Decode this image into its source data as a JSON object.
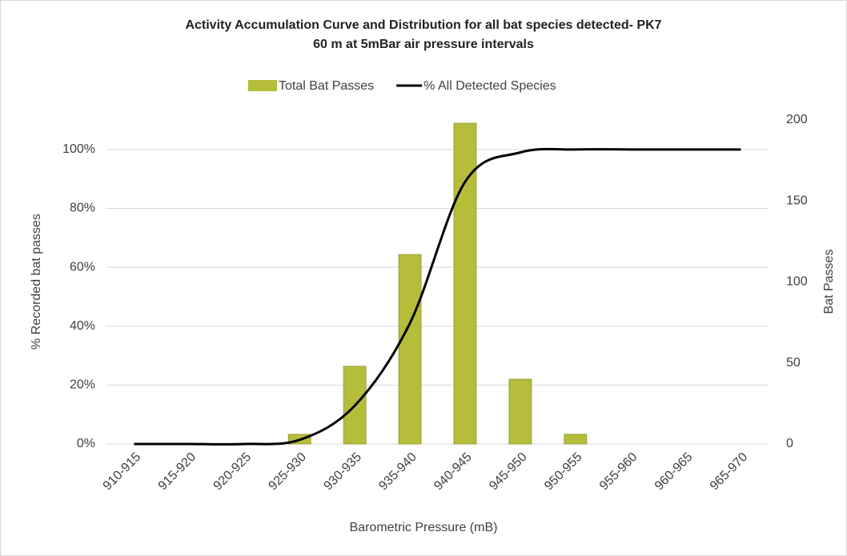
{
  "chart_data": {
    "type": "bar_line",
    "title": "Activity Accumulation Curve and Distribution for all bat species detected- PK7 60 m at 5mBar air pressure intervals",
    "x_label": "Barometric Pressure (mB)",
    "y_label": "% Recorded bat passes",
    "y2_label": "Bat Passes",
    "categories": [
      "910-915",
      "915-920",
      "920-925",
      "925-930",
      "930-935",
      "935-940",
      "940-945",
      "945-950",
      "950-955",
      "955-960",
      "960-965",
      "965-970"
    ],
    "series": [
      {
        "name": "Total Bat Passes",
        "type": "bar",
        "axis": "y2",
        "color": "#b5bd3b",
        "values": [
          0,
          0,
          0,
          6,
          48,
          117,
          198,
          40,
          6,
          0,
          0,
          0
        ]
      },
      {
        "name": "% All Detected Species",
        "type": "line",
        "color": "#000000",
        "values": [
          0,
          0,
          0,
          1.4,
          13,
          41,
          89,
          99,
          100,
          100,
          100,
          100
        ]
      }
    ],
    "ylim": [
      0,
      110
    ],
    "yticks": [
      {
        "value": 0,
        "label": "0%"
      },
      {
        "value": 20,
        "label": "20%"
      },
      {
        "value": 40,
        "label": "40%"
      },
      {
        "value": 60,
        "label": "60%"
      },
      {
        "value": 80,
        "label": "80%"
      },
      {
        "value": 100,
        "label": "100%"
      }
    ],
    "y2lim": [
      0,
      200
    ],
    "y2ticks": [
      0,
      50,
      100,
      150,
      200
    ],
    "grid": true,
    "legend": "top"
  }
}
